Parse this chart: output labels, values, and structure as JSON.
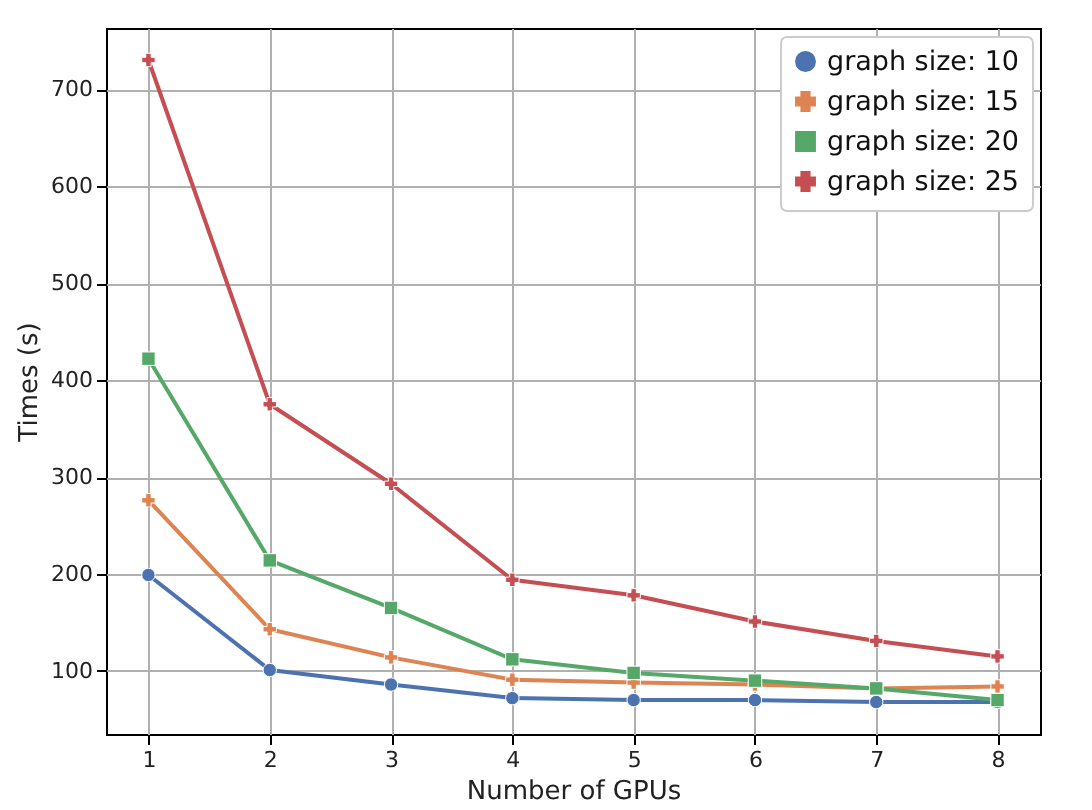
{
  "chart_data": {
    "type": "line",
    "xlabel": "Number of GPUs",
    "ylabel": "Times (s)",
    "x": [
      1,
      2,
      3,
      4,
      5,
      6,
      7,
      8
    ],
    "series": [
      {
        "name": "graph size: 10",
        "color": "#4c72b0",
        "marker": "circle",
        "values": [
          199,
          101,
          86,
          72,
          70,
          70,
          68,
          68
        ]
      },
      {
        "name": "graph size: 15",
        "color": "#dd8452",
        "marker": "cross",
        "values": [
          276,
          143,
          114,
          91,
          88,
          86,
          82,
          84
        ]
      },
      {
        "name": "graph size: 20",
        "color": "#55a868",
        "marker": "square",
        "values": [
          422,
          214,
          165,
          112,
          98,
          90,
          82,
          70
        ]
      },
      {
        "name": "graph size: 25",
        "color": "#c44e52",
        "marker": "cross",
        "values": [
          730,
          375,
          293,
          194,
          178,
          151,
          131,
          115
        ]
      }
    ],
    "xlim": [
      0.65,
      8.35
    ],
    "xticks": [
      1,
      2,
      3,
      4,
      5,
      6,
      7,
      8
    ],
    "ylim": [
      35,
      763
    ],
    "yticks": [
      100,
      200,
      300,
      400,
      500,
      600,
      700
    ],
    "grid": true,
    "legend": "top right",
    "line_style": "solid"
  }
}
